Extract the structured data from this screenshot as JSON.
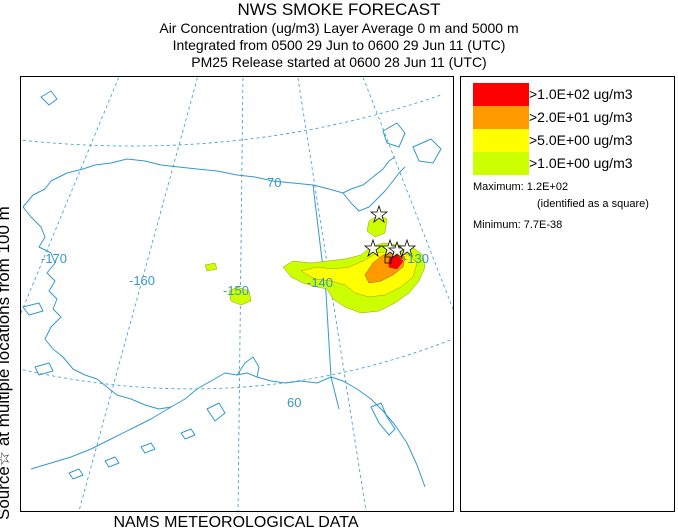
{
  "header": {
    "title": "NWS SMOKE FORECAST",
    "line1": "Air Concentration (ug/m3) Layer Average    0 m and  5000 m",
    "line2": "Integrated from 0500 29 Jun to 0600 29 Jun 11 (UTC)",
    "line3": "PM25 Release started at 0600 28 Jun 11 (UTC)"
  },
  "side_label": "Source☆ at multiple locations  from   100 m",
  "footer": "NAMS METEOROLOGICAL DATA",
  "map": {
    "labels": {
      "lat70": "70",
      "lat60": "60",
      "lon170": "-170",
      "lon160": "-160",
      "lon150": "-150",
      "lon140": "-140",
      "lon130": "-130"
    },
    "colors": {
      "land_outline": "#3399cc",
      "grid": "#3399cc",
      "level_1": "#ccff00",
      "level_5": "#ffff00",
      "level_20": "#ff9900",
      "level_100": "#ff0000"
    }
  },
  "legend": {
    "items": [
      {
        "label": ">1.0E+02 ug/m3",
        "color": "#ff0000"
      },
      {
        "label": ">2.0E+01 ug/m3",
        "color": "#ff9900"
      },
      {
        "label": ">5.0E+00 ug/m3",
        "color": "#ffff00"
      },
      {
        "label": ">1.0E+00 ug/m3",
        "color": "#ccff00"
      }
    ],
    "maximum": "Maximum: 1.2E+02",
    "maximum_note": "(identified as a square)",
    "minimum": "Minimum: 7.7E-38"
  }
}
